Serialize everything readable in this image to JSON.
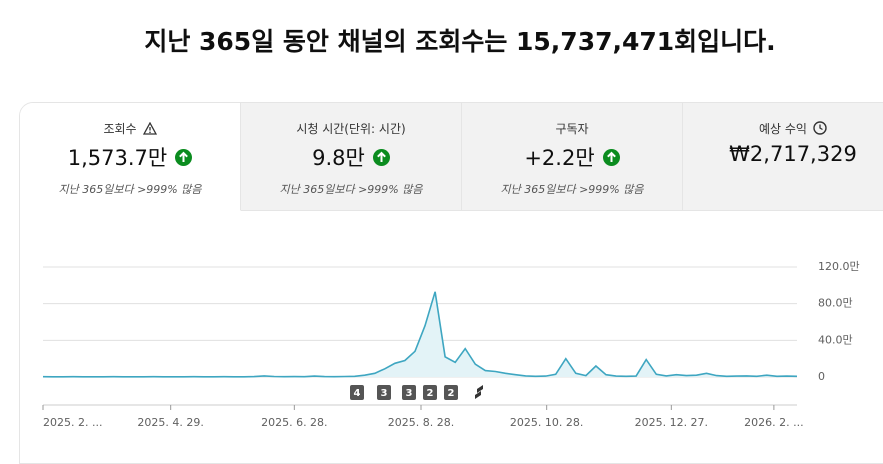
{
  "header": {
    "title": "지난 365일 동안 채널의 조회수는 15,737,471회입니다."
  },
  "cards": [
    {
      "label": "조회수",
      "value": "1,573.7만",
      "note": "지난 365일보다 >999% 많음"
    },
    {
      "label": "시청 시간(단위: 시간)",
      "value": "9.8만",
      "note": "지난 365일보다 >999% 많음"
    },
    {
      "label": "구독자",
      "value": "+2.2만",
      "note": "지난 365일보다 >999% 많음"
    },
    {
      "label": "예상 수익",
      "value": "₩2,717,329"
    }
  ],
  "chart_data": {
    "type": "line",
    "color": "#3ea6c1",
    "values": [
      3000,
      2000,
      2000,
      3000,
      2000,
      2000,
      2000,
      3000,
      2000,
      2000,
      2000,
      3000,
      2000,
      2000,
      2000,
      3000,
      2000,
      2000,
      3000,
      2000,
      2000,
      4000,
      12000,
      5000,
      3000,
      4000,
      3000,
      10000,
      4000,
      3000,
      5000,
      8000,
      20000,
      40000,
      90000,
      150000,
      180000,
      280000,
      560000,
      930000,
      220000,
      160000,
      310000,
      140000,
      70000,
      60000,
      40000,
      25000,
      12000,
      8000,
      10000,
      30000,
      200000,
      40000,
      15000,
      120000,
      25000,
      10000,
      8000,
      10000,
      190000,
      30000,
      12000,
      25000,
      15000,
      20000,
      40000,
      15000,
      8000,
      10000,
      12000,
      8000,
      20000,
      8000,
      10000,
      8000
    ],
    "xlim": [
      0,
      75
    ],
    "xticks": [
      {
        "value": 0,
        "label": "2025. 2. ..."
      },
      {
        "value": 12.7,
        "label": "2025. 4. 29."
      },
      {
        "value": 25,
        "label": "2025. 6. 28."
      },
      {
        "value": 37.6,
        "label": "2025. 8. 28."
      },
      {
        "value": 50.1,
        "label": "2025. 10. 28."
      },
      {
        "value": 62.5,
        "label": "2025. 12. 27."
      },
      {
        "value": 72.7,
        "label": "2026. 2. ..."
      }
    ],
    "ylim": [
      0,
      1200000
    ],
    "yticks": [
      0,
      {
        "value": 400000,
        "label": "40.0만"
      },
      {
        "value": 800000,
        "label": "80.0만"
      },
      {
        "value": 1200000,
        "label": "120.0만"
      }
    ],
    "grid": true,
    "markers": [
      "4",
      "3",
      "3",
      "2",
      "2"
    ]
  }
}
